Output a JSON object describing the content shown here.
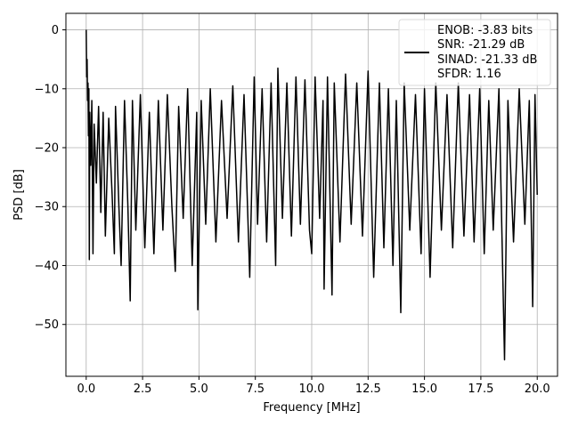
{
  "chart_data": {
    "type": "line",
    "xlabel": "Frequency [MHz]",
    "ylabel": "PSD [dB]",
    "xlim": [
      -0.9,
      20.9
    ],
    "ylim": [
      -58.8,
      2.8
    ],
    "xticks": [
      0.0,
      2.5,
      5.0,
      7.5,
      10.0,
      12.5,
      15.0,
      17.5,
      20.0
    ],
    "xtick_labels": [
      "0.0",
      "2.5",
      "5.0",
      "7.5",
      "10.0",
      "12.5",
      "15.0",
      "17.5",
      "20.0"
    ],
    "yticks": [
      0,
      -10,
      -20,
      -30,
      -40,
      -50
    ],
    "ytick_labels": [
      "0",
      "−10",
      "−20",
      "−30",
      "−40",
      "−50"
    ],
    "grid": true,
    "legend_position": "top-right",
    "legend": {
      "lines": [
        "ENOB: -3.83 bits",
        "SNR: -21.29 dB",
        "SINAD: -21.33 dB",
        "SFDR: 1.16"
      ]
    },
    "series": [
      {
        "color": "#000000",
        "points": [
          [
            0.0,
            0.0
          ],
          [
            0.02,
            -8.0
          ],
          [
            0.04,
            -5.0
          ],
          [
            0.06,
            -12.0
          ],
          [
            0.08,
            -9.0
          ],
          [
            0.1,
            -18.0
          ],
          [
            0.12,
            -10.0
          ],
          [
            0.14,
            -39.0
          ],
          [
            0.16,
            -14.0
          ],
          [
            0.2,
            -23.0
          ],
          [
            0.25,
            -12.0
          ],
          [
            0.3,
            -38.0
          ],
          [
            0.35,
            -16.0
          ],
          [
            0.45,
            -26.0
          ],
          [
            0.55,
            -13.0
          ],
          [
            0.65,
            -31.0
          ],
          [
            0.75,
            -14.0
          ],
          [
            0.85,
            -35.0
          ],
          [
            1.0,
            -15.0
          ],
          [
            1.15,
            -28.0
          ],
          [
            1.25,
            -38.0
          ],
          [
            1.3,
            -13.0
          ],
          [
            1.45,
            -30.0
          ],
          [
            1.55,
            -40.0
          ],
          [
            1.7,
            -12.0
          ],
          [
            1.85,
            -30.0
          ],
          [
            1.95,
            -46.0
          ],
          [
            2.05,
            -12.0
          ],
          [
            2.2,
            -34.0
          ],
          [
            2.4,
            -11.0
          ],
          [
            2.6,
            -37.0
          ],
          [
            2.8,
            -14.0
          ],
          [
            3.0,
            -38.0
          ],
          [
            3.2,
            -12.0
          ],
          [
            3.4,
            -34.0
          ],
          [
            3.6,
            -11.0
          ],
          [
            3.8,
            -30.0
          ],
          [
            3.95,
            -41.0
          ],
          [
            4.1,
            -13.0
          ],
          [
            4.3,
            -32.0
          ],
          [
            4.5,
            -10.0
          ],
          [
            4.7,
            -40.0
          ],
          [
            4.9,
            -14.0
          ],
          [
            4.95,
            -47.5
          ],
          [
            5.1,
            -12.0
          ],
          [
            5.3,
            -33.0
          ],
          [
            5.5,
            -10.0
          ],
          [
            5.75,
            -36.0
          ],
          [
            6.0,
            -12.0
          ],
          [
            6.25,
            -32.0
          ],
          [
            6.5,
            -9.5
          ],
          [
            6.75,
            -36.0
          ],
          [
            7.0,
            -11.0
          ],
          [
            7.25,
            -42.0
          ],
          [
            7.45,
            -8.0
          ],
          [
            7.6,
            -33.0
          ],
          [
            7.8,
            -10.0
          ],
          [
            8.0,
            -36.0
          ],
          [
            8.2,
            -9.0
          ],
          [
            8.4,
            -40.0
          ],
          [
            8.5,
            -6.5
          ],
          [
            8.7,
            -32.0
          ],
          [
            8.9,
            -9.0
          ],
          [
            9.1,
            -35.0
          ],
          [
            9.3,
            -8.0
          ],
          [
            9.5,
            -33.0
          ],
          [
            9.7,
            -8.5
          ],
          [
            9.9,
            -34.0
          ],
          [
            10.0,
            -38.0
          ],
          [
            10.15,
            -8.0
          ],
          [
            10.35,
            -32.0
          ],
          [
            10.5,
            -12.0
          ],
          [
            10.55,
            -44.0
          ],
          [
            10.7,
            -8.0
          ],
          [
            10.9,
            -45.0
          ],
          [
            11.0,
            -9.0
          ],
          [
            11.25,
            -36.0
          ],
          [
            11.5,
            -7.5
          ],
          [
            11.75,
            -33.0
          ],
          [
            12.0,
            -9.0
          ],
          [
            12.25,
            -35.0
          ],
          [
            12.5,
            -7.0
          ],
          [
            12.75,
            -42.0
          ],
          [
            13.0,
            -9.0
          ],
          [
            13.2,
            -37.0
          ],
          [
            13.4,
            -10.0
          ],
          [
            13.6,
            -40.0
          ],
          [
            13.75,
            -12.0
          ],
          [
            13.95,
            -48.0
          ],
          [
            14.1,
            -9.0
          ],
          [
            14.35,
            -34.0
          ],
          [
            14.6,
            -11.0
          ],
          [
            14.85,
            -38.0
          ],
          [
            15.0,
            -10.0
          ],
          [
            15.25,
            -42.0
          ],
          [
            15.5,
            -9.0
          ],
          [
            15.75,
            -34.0
          ],
          [
            16.0,
            -11.0
          ],
          [
            16.25,
            -37.0
          ],
          [
            16.5,
            -9.0
          ],
          [
            16.75,
            -35.0
          ],
          [
            17.0,
            -11.0
          ],
          [
            17.2,
            -36.0
          ],
          [
            17.45,
            -10.0
          ],
          [
            17.65,
            -38.0
          ],
          [
            17.85,
            -12.0
          ],
          [
            18.05,
            -34.0
          ],
          [
            18.3,
            -10.0
          ],
          [
            18.55,
            -56.0
          ],
          [
            18.7,
            -12.0
          ],
          [
            18.95,
            -36.0
          ],
          [
            19.2,
            -10.0
          ],
          [
            19.45,
            -33.0
          ],
          [
            19.65,
            -12.0
          ],
          [
            19.8,
            -47.0
          ],
          [
            19.9,
            -11.0
          ],
          [
            20.0,
            -28.0
          ]
        ]
      }
    ]
  }
}
